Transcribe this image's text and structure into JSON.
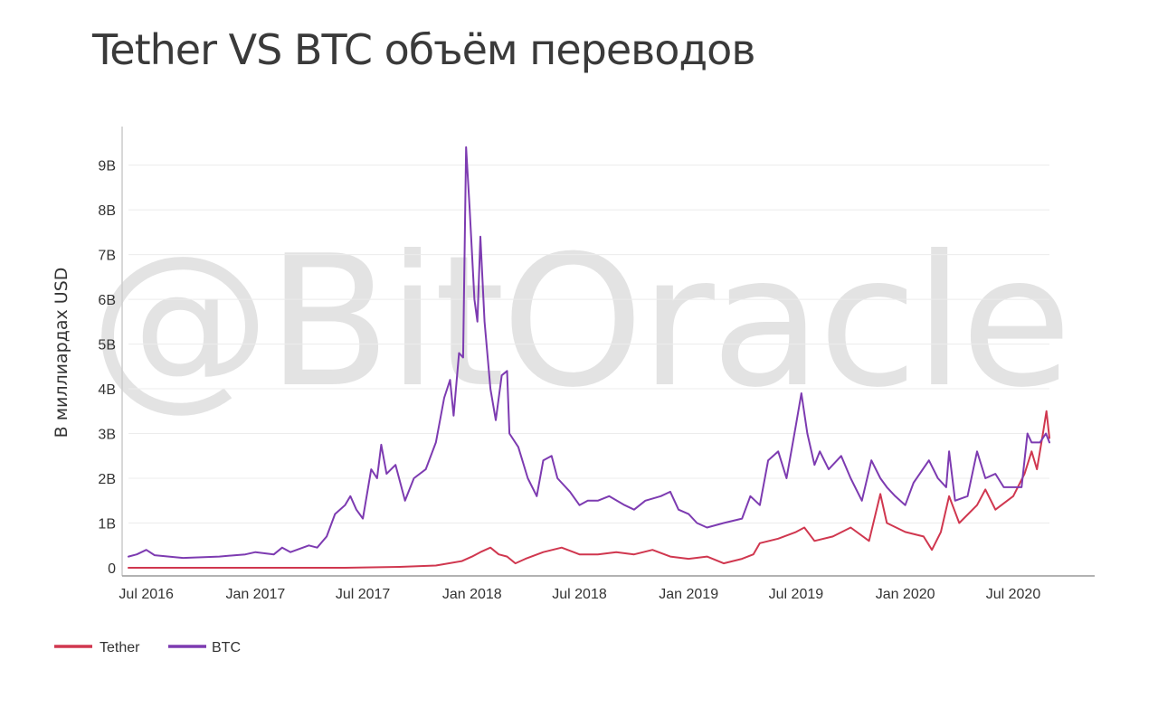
{
  "title": "Tether VS BTC объём переводов",
  "watermark": "@BitOracle",
  "chart_data": {
    "type": "line",
    "title": "Tether VS BTC объём переводов",
    "ylabel": "В миллиардах USD",
    "xlabel": "",
    "x_range": [
      "2016-06-01",
      "2020-08-31"
    ],
    "ylim": [
      0,
      9.7
    ],
    "y_ticks": [
      0,
      1,
      2,
      3,
      4,
      5,
      6,
      7,
      8,
      9
    ],
    "y_tick_labels": [
      "0",
      "1B",
      "2B",
      "3B",
      "4B",
      "5B",
      "6B",
      "7B",
      "8B",
      "9B"
    ],
    "x_ticks": [
      "2016-07-01",
      "2017-01-01",
      "2017-07-01",
      "2018-01-01",
      "2018-07-01",
      "2019-01-01",
      "2019-07-01",
      "2020-01-01",
      "2020-07-01"
    ],
    "x_tick_labels": [
      "Jul 2016",
      "Jan 2017",
      "Jul 2017",
      "Jan 2018",
      "Jul 2018",
      "Jan 2019",
      "Jul 2019",
      "Jan 2020",
      "Jul 2020"
    ],
    "grid": true,
    "legend_position": "bottom-left",
    "colors": {
      "Tether": "#d0374f",
      "BTC": "#7d3bb1"
    },
    "series": [
      {
        "name": "Tether",
        "color": "#d0374f",
        "points": [
          [
            "2016-06-01",
            0.0
          ],
          [
            "2016-12-01",
            0.0
          ],
          [
            "2017-06-01",
            0.0
          ],
          [
            "2017-09-01",
            0.02
          ],
          [
            "2017-11-01",
            0.05
          ],
          [
            "2017-12-15",
            0.15
          ],
          [
            "2018-01-01",
            0.25
          ],
          [
            "2018-01-15",
            0.35
          ],
          [
            "2018-02-01",
            0.45
          ],
          [
            "2018-02-15",
            0.3
          ],
          [
            "2018-03-01",
            0.25
          ],
          [
            "2018-03-15",
            0.1
          ],
          [
            "2018-04-01",
            0.2
          ],
          [
            "2018-05-01",
            0.35
          ],
          [
            "2018-06-01",
            0.45
          ],
          [
            "2018-07-01",
            0.3
          ],
          [
            "2018-08-01",
            0.3
          ],
          [
            "2018-09-01",
            0.35
          ],
          [
            "2018-10-01",
            0.3
          ],
          [
            "2018-11-01",
            0.4
          ],
          [
            "2018-12-01",
            0.25
          ],
          [
            "2019-01-01",
            0.2
          ],
          [
            "2019-02-01",
            0.25
          ],
          [
            "2019-03-01",
            0.1
          ],
          [
            "2019-04-01",
            0.2
          ],
          [
            "2019-04-20",
            0.3
          ],
          [
            "2019-05-01",
            0.55
          ],
          [
            "2019-06-01",
            0.65
          ],
          [
            "2019-07-01",
            0.8
          ],
          [
            "2019-07-15",
            0.9
          ],
          [
            "2019-08-01",
            0.6
          ],
          [
            "2019-09-01",
            0.7
          ],
          [
            "2019-10-01",
            0.9
          ],
          [
            "2019-11-01",
            0.6
          ],
          [
            "2019-11-20",
            1.65
          ],
          [
            "2019-12-01",
            1.0
          ],
          [
            "2020-01-01",
            0.8
          ],
          [
            "2020-02-01",
            0.7
          ],
          [
            "2020-02-15",
            0.4
          ],
          [
            "2020-03-01",
            0.8
          ],
          [
            "2020-03-15",
            1.6
          ],
          [
            "2020-04-01",
            1.0
          ],
          [
            "2020-05-01",
            1.4
          ],
          [
            "2020-05-15",
            1.75
          ],
          [
            "2020-06-01",
            1.3
          ],
          [
            "2020-07-01",
            1.6
          ],
          [
            "2020-07-20",
            2.1
          ],
          [
            "2020-08-01",
            2.6
          ],
          [
            "2020-08-10",
            2.2
          ],
          [
            "2020-08-20",
            3.0
          ],
          [
            "2020-08-26",
            3.5
          ],
          [
            "2020-08-31",
            2.9
          ]
        ]
      },
      {
        "name": "BTC",
        "color": "#7d3bb1",
        "points": [
          [
            "2016-06-01",
            0.25
          ],
          [
            "2016-06-15",
            0.3
          ],
          [
            "2016-07-01",
            0.4
          ],
          [
            "2016-07-15",
            0.28
          ],
          [
            "2016-09-01",
            0.22
          ],
          [
            "2016-11-01",
            0.25
          ],
          [
            "2016-12-15",
            0.3
          ],
          [
            "2017-01-01",
            0.35
          ],
          [
            "2017-02-01",
            0.3
          ],
          [
            "2017-02-15",
            0.45
          ],
          [
            "2017-03-01",
            0.35
          ],
          [
            "2017-04-01",
            0.5
          ],
          [
            "2017-04-15",
            0.45
          ],
          [
            "2017-05-01",
            0.7
          ],
          [
            "2017-05-15",
            1.2
          ],
          [
            "2017-06-01",
            1.4
          ],
          [
            "2017-06-10",
            1.6
          ],
          [
            "2017-06-20",
            1.3
          ],
          [
            "2017-07-01",
            1.1
          ],
          [
            "2017-07-15",
            2.2
          ],
          [
            "2017-07-25",
            2.0
          ],
          [
            "2017-08-01",
            2.75
          ],
          [
            "2017-08-10",
            2.1
          ],
          [
            "2017-08-25",
            2.3
          ],
          [
            "2017-09-10",
            1.5
          ],
          [
            "2017-09-25",
            2.0
          ],
          [
            "2017-10-15",
            2.2
          ],
          [
            "2017-11-01",
            2.8
          ],
          [
            "2017-11-15",
            3.8
          ],
          [
            "2017-11-25",
            4.2
          ],
          [
            "2017-12-01",
            3.4
          ],
          [
            "2017-12-10",
            4.8
          ],
          [
            "2017-12-17",
            4.7
          ],
          [
            "2017-12-22",
            9.4
          ],
          [
            "2017-12-28",
            8.0
          ],
          [
            "2018-01-05",
            6.0
          ],
          [
            "2018-01-10",
            5.5
          ],
          [
            "2018-01-15",
            7.4
          ],
          [
            "2018-01-22",
            5.5
          ],
          [
            "2018-02-01",
            4.0
          ],
          [
            "2018-02-10",
            3.3
          ],
          [
            "2018-02-20",
            4.3
          ],
          [
            "2018-03-01",
            4.4
          ],
          [
            "2018-03-05",
            3.0
          ],
          [
            "2018-03-20",
            2.7
          ],
          [
            "2018-04-05",
            2.0
          ],
          [
            "2018-04-20",
            1.6
          ],
          [
            "2018-05-01",
            2.4
          ],
          [
            "2018-05-15",
            2.5
          ],
          [
            "2018-05-25",
            2.0
          ],
          [
            "2018-06-15",
            1.7
          ],
          [
            "2018-07-01",
            1.4
          ],
          [
            "2018-07-15",
            1.5
          ],
          [
            "2018-08-01",
            1.5
          ],
          [
            "2018-08-20",
            1.6
          ],
          [
            "2018-09-15",
            1.4
          ],
          [
            "2018-10-01",
            1.3
          ],
          [
            "2018-10-20",
            1.5
          ],
          [
            "2018-11-15",
            1.6
          ],
          [
            "2018-12-01",
            1.7
          ],
          [
            "2018-12-15",
            1.3
          ],
          [
            "2019-01-01",
            1.2
          ],
          [
            "2019-01-15",
            1.0
          ],
          [
            "2019-02-01",
            0.9
          ],
          [
            "2019-03-01",
            1.0
          ],
          [
            "2019-04-01",
            1.1
          ],
          [
            "2019-04-15",
            1.6
          ],
          [
            "2019-05-01",
            1.4
          ],
          [
            "2019-05-15",
            2.4
          ],
          [
            "2019-06-01",
            2.6
          ],
          [
            "2019-06-15",
            2.0
          ],
          [
            "2019-07-01",
            3.2
          ],
          [
            "2019-07-10",
            3.9
          ],
          [
            "2019-07-20",
            3.0
          ],
          [
            "2019-08-01",
            2.3
          ],
          [
            "2019-08-10",
            2.6
          ],
          [
            "2019-08-25",
            2.2
          ],
          [
            "2019-09-15",
            2.5
          ],
          [
            "2019-10-01",
            2.0
          ],
          [
            "2019-10-20",
            1.5
          ],
          [
            "2019-11-05",
            2.4
          ],
          [
            "2019-11-20",
            2.0
          ],
          [
            "2019-12-01",
            1.8
          ],
          [
            "2019-12-15",
            1.6
          ],
          [
            "2020-01-01",
            1.4
          ],
          [
            "2020-01-15",
            1.9
          ],
          [
            "2020-02-10",
            2.4
          ],
          [
            "2020-02-25",
            2.0
          ],
          [
            "2020-03-10",
            1.8
          ],
          [
            "2020-03-15",
            2.6
          ],
          [
            "2020-03-25",
            1.5
          ],
          [
            "2020-04-15",
            1.6
          ],
          [
            "2020-05-01",
            2.6
          ],
          [
            "2020-05-15",
            2.0
          ],
          [
            "2020-06-01",
            2.1
          ],
          [
            "2020-06-15",
            1.8
          ],
          [
            "2020-07-01",
            1.8
          ],
          [
            "2020-07-15",
            1.8
          ],
          [
            "2020-07-25",
            3.0
          ],
          [
            "2020-08-01",
            2.8
          ],
          [
            "2020-08-15",
            2.8
          ],
          [
            "2020-08-25",
            3.0
          ],
          [
            "2020-08-31",
            2.8
          ]
        ]
      }
    ]
  }
}
